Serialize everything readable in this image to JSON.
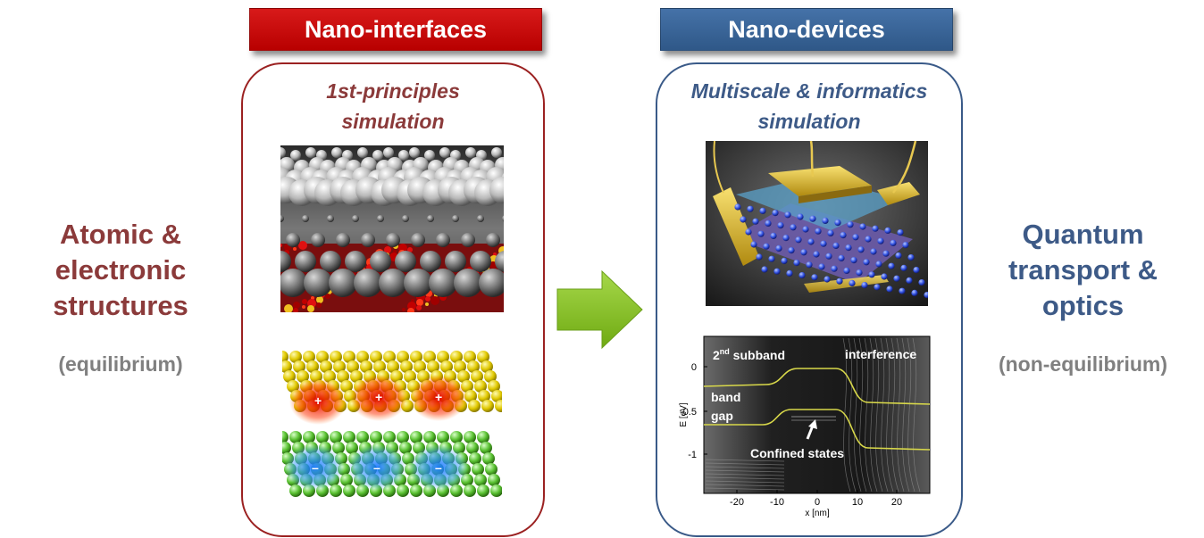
{
  "left": {
    "title_lines": [
      "Atomic &",
      "electronic",
      "structures"
    ],
    "subtitle": "(equilibrium)",
    "color": "#8b3a3a"
  },
  "right": {
    "title_lines": [
      "Quantum",
      "transport &",
      "optics"
    ],
    "subtitle": "(non-equilibrium)",
    "color": "#3d5a87"
  },
  "nano_interfaces": {
    "banner": "Nano-interfaces",
    "banner_color": "#c00000",
    "panel_title_lines": [
      "1st-principles",
      "simulation"
    ],
    "border_color": "#9b2121"
  },
  "nano_devices": {
    "banner": "Nano-devices",
    "banner_color": "#3a6496",
    "panel_title_lines": [
      "Multiscale & informatics",
      "simulation"
    ],
    "border_color": "#3a5a88"
  },
  "arrow": {
    "color": "#86c126"
  },
  "band_plot": {
    "ylabel": "E [eV]",
    "xlabel": "x [nm]",
    "x_ticks": [
      "-20",
      "-10",
      "0",
      "10",
      "20"
    ],
    "y_ticks": [
      "0",
      "-0.5",
      "-1"
    ],
    "annotations": {
      "subband_base": "2",
      "subband_sup": "nd",
      "subband_rest": " subband",
      "interference": "interference",
      "band": "band",
      "gap": "gap",
      "confined": "Confined states"
    }
  }
}
